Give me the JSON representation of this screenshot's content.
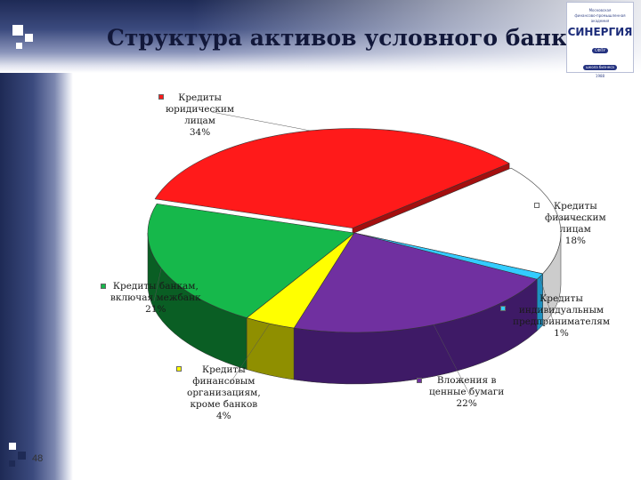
{
  "title": "Структура активов условного банка",
  "page_number": "48",
  "logo": {
    "top_line_1": "Московская",
    "top_line_2": "финансово-промышленная",
    "top_line_3": "академия",
    "name": "СИНЕРГИЯ",
    "pill_1": "СФПУ",
    "pill_2": "школа бизнеса",
    "bottom_line": "1988"
  },
  "chart_data": {
    "type": "pie",
    "title": "Структура активов условного банка",
    "style": "3d-exploded",
    "legend": "labels beside slices",
    "categories": [
      "Кредиты юридическим лицам",
      "Кредиты физическим лицам",
      "Кредиты индивидуальным предпринимателям",
      "Вложения в ценные бумаги",
      "Кредиты финансовым организациям, кроме банков",
      "Кредиты банкам, включая межбанк"
    ],
    "values": [
      34,
      18,
      1,
      22,
      4,
      21
    ],
    "unit": "%",
    "colors": [
      "#ff1a1a",
      "#ffffff",
      "#33ccff",
      "#7030a0",
      "#ffff00",
      "#16b84b"
    ],
    "side_colors": [
      "#a30f0f",
      "#cccccc",
      "#1e90c0",
      "#3e1a66",
      "#8f8f00",
      "#0a5e24"
    ],
    "labels": [
      "Кредиты\nюридическим\nлицам\n34%",
      "Кредиты\nфизическим\nлицам\n18%",
      "Кредиты\nиндивидуальным\nпредпринимателям\n1%",
      "Вложения в\nценные бумаги\n22%",
      "Кредиты\nфинансовым\nорганизациям,\nкроме банков\n4%",
      "Кредиты банкам,\nвключая межбанк\n21%"
    ]
  }
}
